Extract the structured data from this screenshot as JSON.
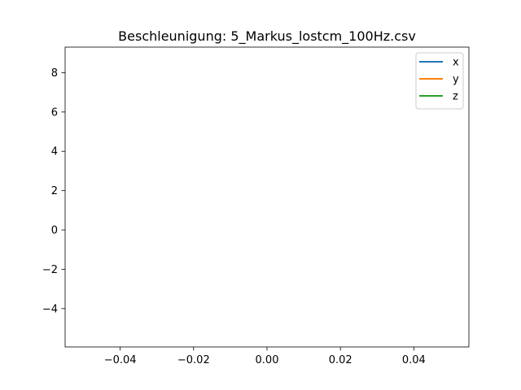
{
  "chart_data": {
    "type": "line",
    "title": "Beschleunigung: 5_Markus_lostcm_100Hz.csv",
    "xlabel": "",
    "ylabel": "",
    "xlim": [
      -0.055,
      0.055
    ],
    "ylim": [
      -5.95,
      9.3
    ],
    "x_ticks": [
      -0.04,
      -0.02,
      0.0,
      0.02,
      0.04
    ],
    "x_tick_labels": [
      "−0.04",
      "−0.02",
      "0.00",
      "0.02",
      "0.04"
    ],
    "y_ticks": [
      -4,
      -2,
      0,
      2,
      4,
      6,
      8
    ],
    "y_tick_labels": [
      "−4",
      "−2",
      "0",
      "2",
      "4",
      "6",
      "8"
    ],
    "grid": false,
    "legend_position": "upper-right",
    "series": [
      {
        "name": "x",
        "color": "#1f77b4",
        "x": [],
        "values": []
      },
      {
        "name": "y",
        "color": "#ff7f0e",
        "x": [],
        "values": []
      },
      {
        "name": "z",
        "color": "#2ca02c",
        "x": [],
        "values": []
      }
    ]
  }
}
